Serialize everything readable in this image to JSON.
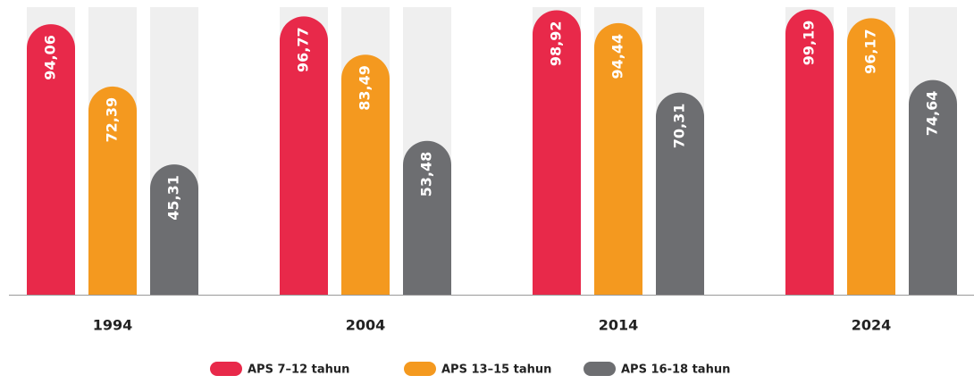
{
  "chart_data": {
    "type": "bar",
    "categories": [
      "1994",
      "2004",
      "2014",
      "2024"
    ],
    "series": [
      {
        "name": "APS 7–12 tahun",
        "color": "#e8294a",
        "values": [
          94.06,
          96.77,
          98.92,
          99.19
        ],
        "value_labels": [
          "94,06",
          "96,77",
          "98,92",
          "99,19"
        ]
      },
      {
        "name": "APS 13–15 tahun",
        "color": "#f4991f",
        "values": [
          72.39,
          83.49,
          94.44,
          96.17
        ],
        "value_labels": [
          "72,39",
          "83,49",
          "94,44",
          "96,17"
        ]
      },
      {
        "name": "APS 16-18 tahun",
        "color": "#6d6e71",
        "values": [
          45.31,
          53.48,
          70.31,
          74.64
        ],
        "value_labels": [
          "45,31",
          "53,48",
          "70,31",
          "74,64"
        ]
      }
    ],
    "ylim": [
      0,
      100
    ]
  }
}
